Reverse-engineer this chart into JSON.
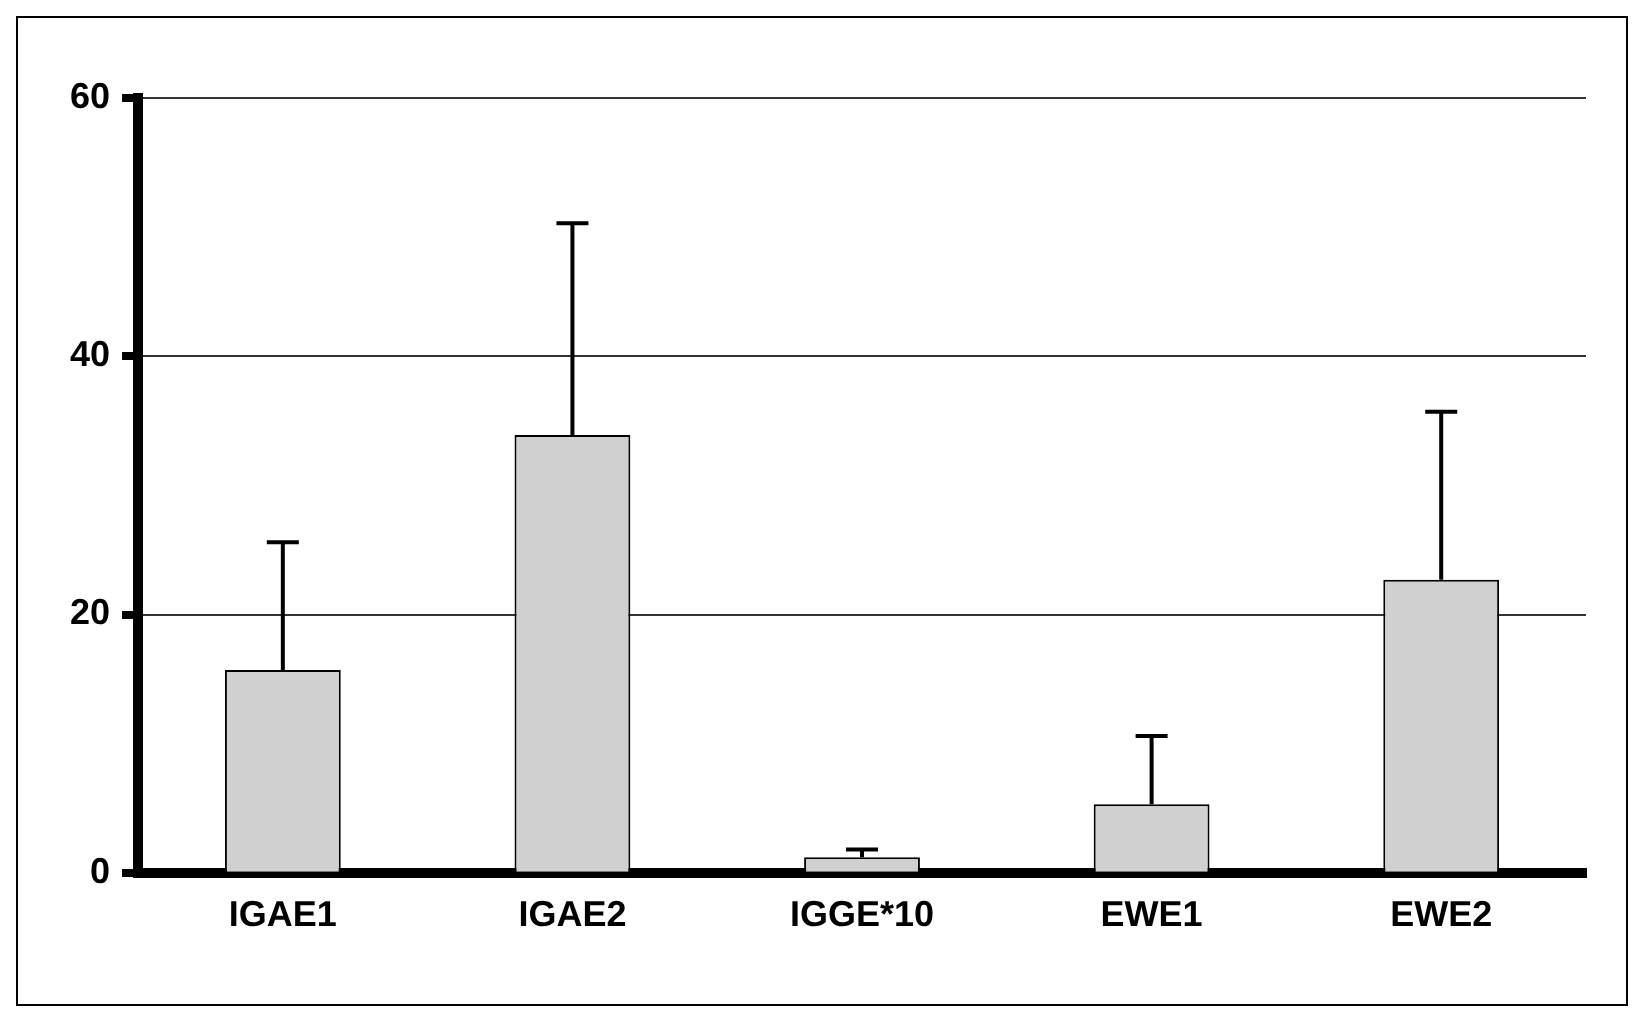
{
  "chart_data": {
    "type": "bar",
    "categories": [
      "IGAE1",
      "IGAE2",
      "IGGE*10",
      "EWE1",
      "EWE2"
    ],
    "values": [
      15.7,
      33.9,
      1.2,
      5.3,
      22.7
    ],
    "errors": [
      [
        15.7,
        25.6
      ],
      [
        33.9,
        50.3
      ],
      [
        1.2,
        1.8
      ],
      [
        5.3,
        10.6
      ],
      [
        22.7,
        35.7
      ]
    ],
    "color": "#d0d0d0",
    "ylim": [
      0,
      60
    ],
    "yticks": [
      0,
      20,
      40,
      60
    ],
    "grid": "y",
    "legend": false
  }
}
